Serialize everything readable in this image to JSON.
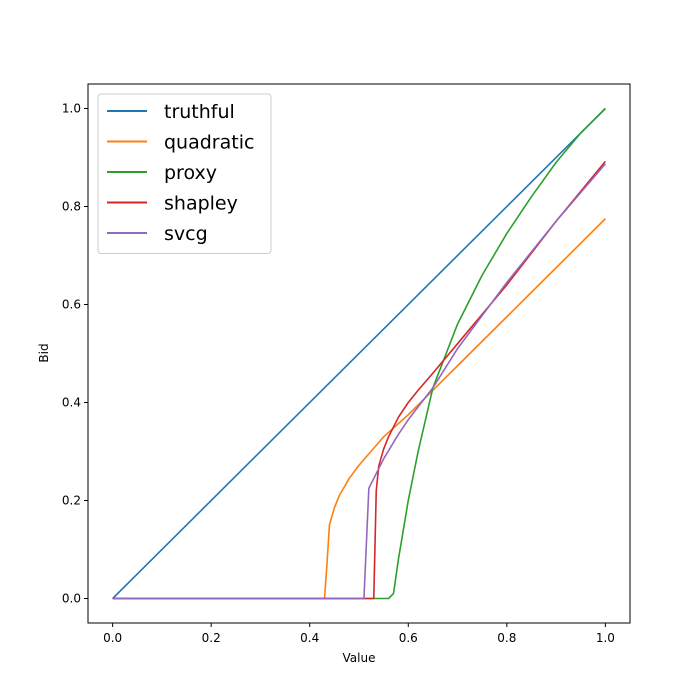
{
  "chart_data": {
    "type": "line",
    "title": "",
    "xlabel": "Value",
    "ylabel": "Bid",
    "xlim": [
      -0.05,
      1.05
    ],
    "ylim": [
      -0.05,
      1.05
    ],
    "xticks": [
      0.0,
      0.2,
      0.4,
      0.6,
      0.8,
      1.0
    ],
    "yticks": [
      0.0,
      0.2,
      0.4,
      0.6,
      0.8,
      1.0
    ],
    "xtick_labels": [
      "0.0",
      "0.2",
      "0.4",
      "0.6",
      "0.8",
      "1.0"
    ],
    "ytick_labels": [
      "0.0",
      "0.2",
      "0.4",
      "0.6",
      "0.8",
      "1.0"
    ],
    "grid": false,
    "legend_position": "top-left",
    "series": [
      {
        "name": "truthful",
        "color": "#1f77b4",
        "x": [
          0.0,
          1.0
        ],
        "y": [
          0.0,
          1.0
        ]
      },
      {
        "name": "quadratic",
        "color": "#ff7f0e",
        "x": [
          0.0,
          0.43,
          0.435,
          0.44,
          0.45,
          0.46,
          0.48,
          0.5,
          0.55,
          0.6,
          0.7,
          0.8,
          0.9,
          1.0
        ],
        "y": [
          0.0,
          0.0,
          0.07,
          0.15,
          0.185,
          0.21,
          0.245,
          0.272,
          0.33,
          0.375,
          0.475,
          0.575,
          0.675,
          0.775
        ]
      },
      {
        "name": "proxy",
        "color": "#2ca02c",
        "x": [
          0.0,
          0.56,
          0.57,
          0.58,
          0.6,
          0.62,
          0.65,
          0.7,
          0.75,
          0.8,
          0.85,
          0.9,
          0.95,
          1.0
        ],
        "y": [
          0.0,
          0.0,
          0.01,
          0.08,
          0.2,
          0.3,
          0.43,
          0.56,
          0.66,
          0.745,
          0.82,
          0.89,
          0.95,
          1.0
        ]
      },
      {
        "name": "shapley",
        "color": "#d62728",
        "x": [
          0.0,
          0.53,
          0.535,
          0.54,
          0.55,
          0.56,
          0.58,
          0.6,
          0.62,
          0.65,
          0.7,
          0.8,
          0.9,
          1.0
        ],
        "y": [
          0.0,
          0.0,
          0.22,
          0.27,
          0.305,
          0.33,
          0.37,
          0.4,
          0.425,
          0.46,
          0.52,
          0.64,
          0.77,
          0.892
        ]
      },
      {
        "name": "svcg",
        "color": "#9467bd",
        "x": [
          0.0,
          0.51,
          0.52,
          0.53,
          0.55,
          0.58,
          0.6,
          0.65,
          0.7,
          0.8,
          0.9,
          1.0
        ],
        "y": [
          0.0,
          0.0,
          0.225,
          0.245,
          0.285,
          0.335,
          0.365,
          0.43,
          0.51,
          0.645,
          0.77,
          0.887
        ]
      }
    ]
  }
}
